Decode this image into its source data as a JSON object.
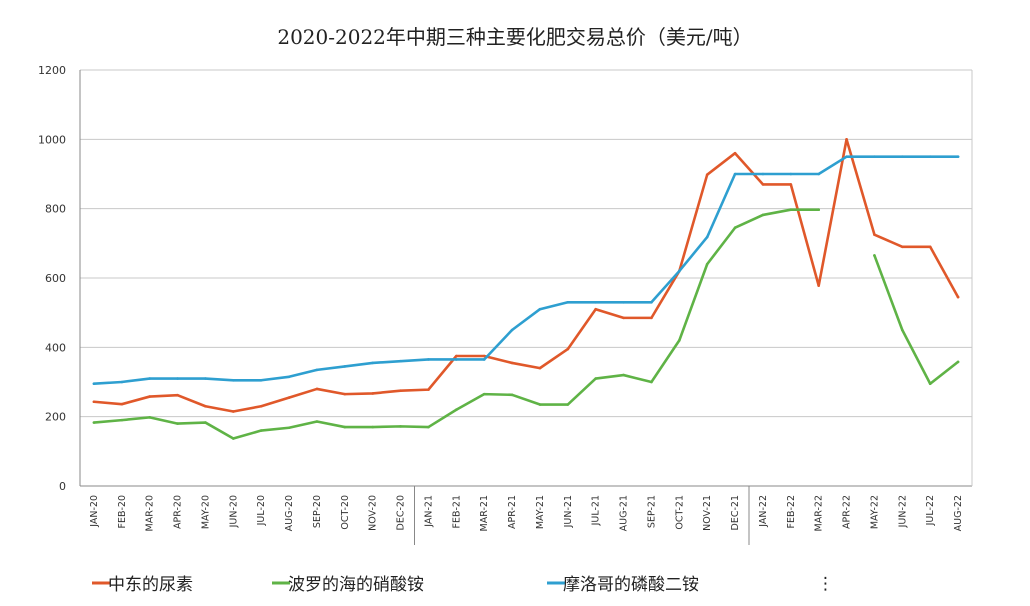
{
  "chart_data": {
    "type": "line",
    "title": "2020-2022年中期三种主要化肥交易总价（美元/吨）",
    "xlabel": "",
    "ylabel": "",
    "ylim": [
      0,
      1200
    ],
    "yticks": [
      0,
      200,
      400,
      600,
      800,
      1000,
      1200
    ],
    "grid": true,
    "legend_position": "bottom",
    "categories": [
      "JAN-20",
      "FEB-20",
      "MAR-20",
      "APR-20",
      "MAY-20",
      "JUN-20",
      "JUL-20",
      "AUG-20",
      "SEP-20",
      "OCT-20",
      "NOV-20",
      "DEC-20",
      "JAN-21",
      "FEB-21",
      "MAR-21",
      "APR-21",
      "MAY-21",
      "JUN-21",
      "JUL-21",
      "AUG-21",
      "SEP-21",
      "OCT-21",
      "NOV-21",
      "DEC-21",
      "JAN-22",
      "FEB-22",
      "MAR-22",
      "APR-22",
      "MAY-22",
      "JUN-22",
      "JUL-22",
      "AUG-22"
    ],
    "series": [
      {
        "name": "中东的尿素",
        "color": "#e0582a",
        "values": [
          243,
          236,
          258,
          262,
          230,
          215,
          230,
          255,
          280,
          265,
          267,
          275,
          278,
          375,
          375,
          355,
          340,
          395,
          510,
          485,
          485,
          620,
          898,
          960,
          870,
          870,
          578,
          1000,
          725,
          690,
          690,
          545
        ]
      },
      {
        "name": "波罗的海的硝酸铵",
        "color": "#5fb346",
        "values": [
          183,
          190,
          198,
          180,
          183,
          137,
          160,
          168,
          186,
          170,
          170,
          172,
          170,
          220,
          265,
          263,
          235,
          235,
          310,
          320,
          300,
          420,
          640,
          745,
          782,
          797,
          797,
          null,
          665,
          450,
          295,
          358
        ]
      },
      {
        "name": "摩洛哥的磷酸二铵",
        "color": "#2e9fd0",
        "values": [
          295,
          300,
          310,
          310,
          310,
          305,
          305,
          315,
          335,
          345,
          355,
          360,
          365,
          365,
          365,
          450,
          510,
          530,
          530,
          530,
          530,
          620,
          718,
          900,
          900,
          900,
          900,
          950,
          950,
          950,
          950,
          950
        ]
      }
    ],
    "legend_extra": "⋮"
  }
}
